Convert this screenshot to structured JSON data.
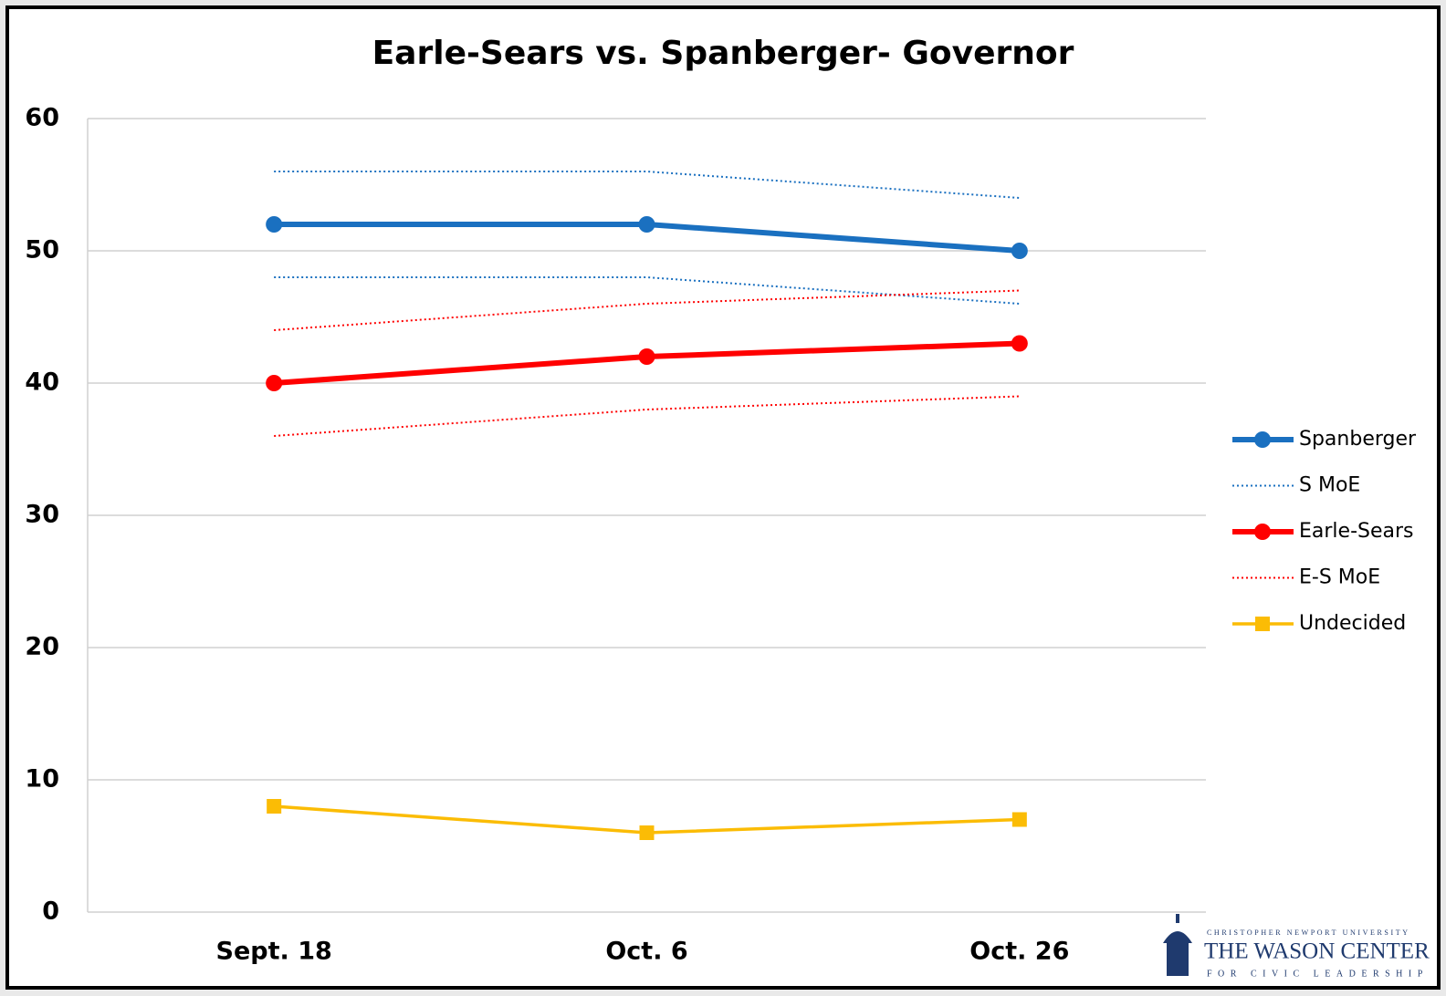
{
  "chart_data": {
    "type": "line",
    "title": "Earle-Sears vs. Spanberger- Governor",
    "categories": [
      "Sept. 18",
      "Oct. 6",
      "Oct. 26"
    ],
    "ylim": [
      0,
      60
    ],
    "yticks": [
      0,
      10,
      20,
      30,
      40,
      50,
      60
    ],
    "grid": true,
    "legend": "right",
    "series": [
      {
        "name": "Spanberger",
        "color": "#1a70c0",
        "marker": "circle",
        "values": [
          52,
          52,
          50
        ]
      },
      {
        "name": "S MoE",
        "color": "#1a70c0",
        "dashed": true,
        "upper": [
          56,
          56,
          54
        ],
        "lower": [
          48,
          48,
          46
        ]
      },
      {
        "name": "Earle-Sears",
        "color": "#ff0000",
        "marker": "circle",
        "values": [
          40,
          42,
          43
        ]
      },
      {
        "name": "E-S MoE",
        "color": "#ff0000",
        "dashed": true,
        "upper": [
          44,
          46,
          47
        ],
        "lower": [
          36,
          38,
          39
        ]
      },
      {
        "name": "Undecided",
        "color": "#fbbc05",
        "marker": "square",
        "values": [
          8,
          6,
          7
        ]
      }
    ]
  },
  "logo": {
    "university": "CHRISTOPHER NEWPORT UNIVERSITY",
    "name": "THE WASON CENTER",
    "tagline": "FOR CIVIC LEADERSHIP"
  }
}
